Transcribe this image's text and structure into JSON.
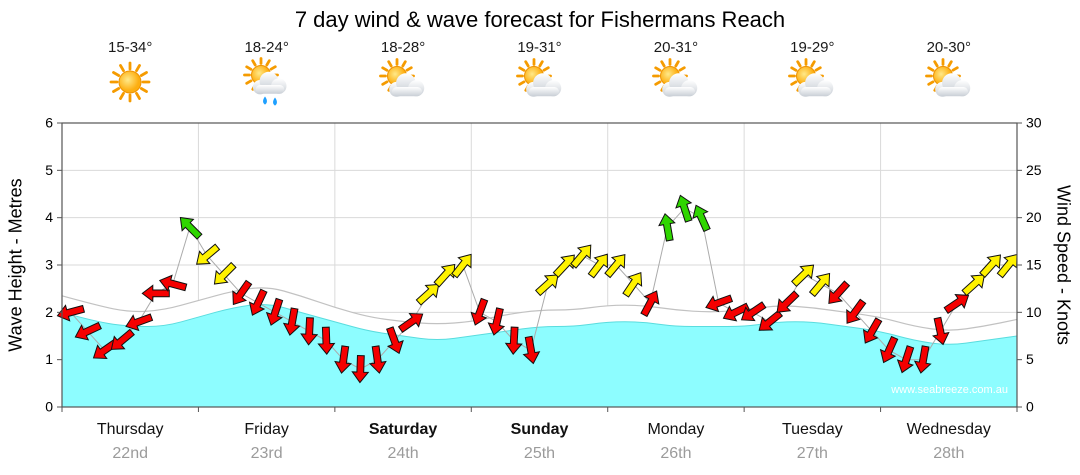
{
  "title": "7 day wind & wave forecast for Fishermans Reach",
  "watermark": "www.seabreeze.com.au",
  "header": {
    "temps": [
      "15-34°",
      "18-24°",
      "18-28°",
      "19-31°",
      "20-31°",
      "19-29°",
      "20-30°"
    ],
    "icons": [
      "sunny",
      "sun-cloud-rain",
      "sun-cloud",
      "sun-cloud",
      "sun-cloud",
      "sun-cloud",
      "sun-cloud"
    ]
  },
  "x_axis": {
    "days": [
      {
        "name": "Thursday",
        "date": "22nd",
        "bold": false
      },
      {
        "name": "Friday",
        "date": "23rd",
        "bold": false
      },
      {
        "name": "Saturday",
        "date": "24th",
        "bold": true
      },
      {
        "name": "Sunday",
        "date": "25th",
        "bold": true
      },
      {
        "name": "Monday",
        "date": "26th",
        "bold": false
      },
      {
        "name": "Tuesday",
        "date": "27th",
        "bold": false
      },
      {
        "name": "Wednesday",
        "date": "28th",
        "bold": false
      }
    ]
  },
  "y_axis_left": {
    "label": "Wave Height - Metres",
    "ticks": [
      0,
      1,
      2,
      3,
      4,
      5,
      6
    ],
    "min": 0,
    "max": 6
  },
  "y_axis_right": {
    "label": "Wind Speed - Knots",
    "ticks": [
      0,
      5,
      10,
      15,
      20,
      25,
      30
    ],
    "min": 0,
    "max": 30
  },
  "colors": {
    "wave_fill": "#8DFDFF",
    "wave_stroke": "#5ADCDE",
    "band_fill": "#FFFFFF",
    "band_stroke": "#C2C2C2",
    "arrow_red": "#F50000",
    "arrow_yellow": "#FFF200",
    "arrow_green": "#2FD600",
    "wind_line": "#ABABAB",
    "grid": "#DADADA",
    "frame": "#555555",
    "date_text": "#9B9B9B"
  },
  "chart_data": {
    "type": "line",
    "description": "Wind speed arrows (knots, right axis 0-30) plotted over cyan wave-height area (metres, left axis 0-6); 8 wind points per day across 7 days; arrow color bands: red light, yellow moderate, green fresh",
    "days": [
      "Thursday 22nd",
      "Friday 23rd",
      "Saturday 24th",
      "Sunday 25th",
      "Monday 26th",
      "Tuesday 27th",
      "Wednesday 28th"
    ],
    "ylim_left": [
      0,
      6
    ],
    "ylim_right": [
      0,
      30
    ],
    "wind": {
      "knots": [
        10,
        8,
        6,
        7,
        9,
        12,
        13,
        19,
        16,
        14,
        12,
        11,
        10,
        9,
        8,
        7,
        5,
        4,
        5,
        7,
        9,
        12,
        14,
        15,
        10,
        9,
        7,
        6,
        13,
        15,
        16,
        15,
        15,
        13,
        11,
        19,
        21,
        20,
        11,
        10,
        10,
        9,
        11,
        14,
        13,
        12,
        10,
        8,
        6,
        5,
        5,
        8,
        11,
        13,
        15,
        15
      ],
      "direction_deg": [
        255,
        245,
        235,
        230,
        250,
        270,
        285,
        315,
        230,
        225,
        215,
        205,
        198,
        190,
        183,
        178,
        188,
        182,
        172,
        160,
        55,
        48,
        42,
        38,
        200,
        193,
        183,
        170,
        48,
        43,
        40,
        37,
        40,
        34,
        28,
        350,
        342,
        336,
        250,
        244,
        236,
        231,
        226,
        46,
        40,
        222,
        216,
        210,
        204,
        198,
        190,
        168,
        56,
        48,
        42,
        39
      ],
      "color": [
        "red",
        "red",
        "red",
        "red",
        "red",
        "red",
        "red",
        "green",
        "yellow",
        "yellow",
        "red",
        "red",
        "red",
        "red",
        "red",
        "red",
        "red",
        "red",
        "red",
        "red",
        "red",
        "yellow",
        "yellow",
        "yellow",
        "red",
        "red",
        "red",
        "red",
        "yellow",
        "yellow",
        "yellow",
        "yellow",
        "yellow",
        "yellow",
        "red",
        "green",
        "green",
        "green",
        "red",
        "red",
        "red",
        "red",
        "red",
        "yellow",
        "yellow",
        "red",
        "red",
        "red",
        "red",
        "red",
        "red",
        "red",
        "red",
        "yellow",
        "yellow",
        "yellow"
      ]
    },
    "wave_height_m": [
      2.0,
      1.8,
      1.7,
      1.7,
      1.9,
      2.1,
      2.2,
      2.0,
      1.8,
      1.6,
      1.5,
      1.4,
      1.5,
      1.6,
      1.7,
      1.7,
      1.8,
      1.8,
      1.7,
      1.7,
      1.7,
      1.8,
      1.8,
      1.7,
      1.6,
      1.4,
      1.3,
      1.4,
      1.5
    ],
    "wave_band_top_m": [
      2.35,
      2.15,
      2.0,
      2.05,
      2.25,
      2.45,
      2.55,
      2.35,
      2.1,
      1.9,
      1.8,
      1.75,
      1.8,
      1.95,
      2.05,
      2.05,
      2.15,
      2.15,
      2.05,
      2.0,
      2.05,
      2.15,
      2.1,
      2.0,
      1.9,
      1.7,
      1.6,
      1.7,
      1.85
    ]
  }
}
